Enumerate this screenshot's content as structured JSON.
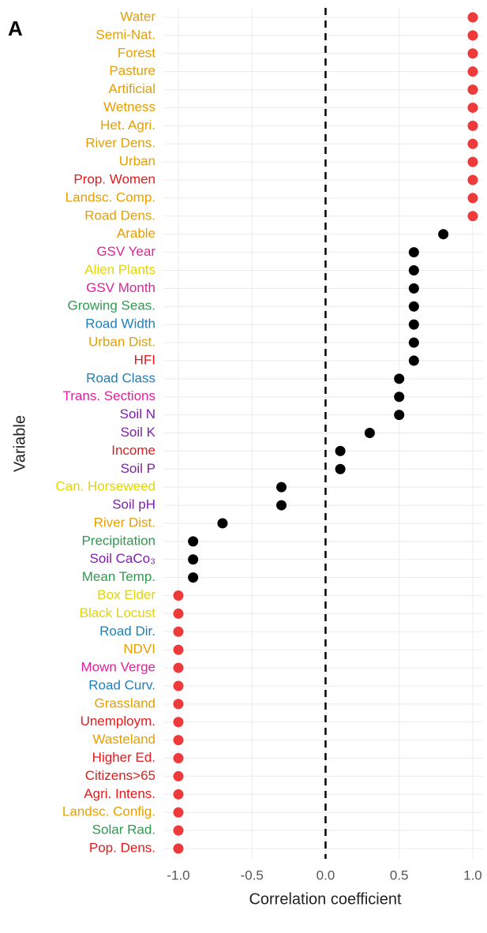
{
  "chart_data": {
    "type": "dot",
    "panel_label": "A",
    "xlabel": "Correlation coefficient",
    "ylabel": "Variable",
    "categories": [
      "Water",
      "Semi-Nat.",
      "Forest",
      "Pasture",
      "Artificial",
      "Wetness",
      "Het. Agri.",
      "River Dens.",
      "Urban",
      "Prop. Women",
      "Landsc. Comp.",
      "Road Dens.",
      "Arable",
      "GSV Year",
      "Alien Plants",
      "GSV Month",
      "Growing Seas.",
      "Road Width",
      "Urban Dist.",
      "HFI",
      "Road Class",
      "Trans. Sections",
      "Soil N",
      "Soil K",
      "Income",
      "Soil P",
      "Can. Horseweed",
      "Soil pH",
      "River Dist.",
      "Precipitation",
      "Soil CaCo₃",
      "Mean Temp.",
      "Box Elder",
      "Black Locust",
      "Road Dir.",
      "NDVI",
      "Mown Verge",
      "Road Curv.",
      "Grassland",
      "Unemploym.",
      "Wasteland",
      "Higher Ed.",
      "Citizens>65",
      "Agri. Intens.",
      "Landsc. Config.",
      "Solar Rad.",
      "Pop. Dens."
    ],
    "values": [
      1,
      1,
      1,
      1,
      1,
      1,
      1,
      1,
      1,
      1,
      1,
      1,
      0.8,
      0.6,
      0.6,
      0.6,
      0.6,
      0.6,
      0.6,
      0.6,
      0.5,
      0.5,
      0.5,
      0.3,
      0.1,
      0.1,
      -0.3,
      -0.3,
      -0.7,
      -0.9,
      -0.9,
      -0.9,
      -1,
      -1,
      -1,
      -1,
      -1,
      -1,
      -1,
      -1,
      -1,
      -1,
      -1,
      -1,
      -1,
      -1,
      -1
    ],
    "point_colors": [
      "#ee3a3a",
      "#ee3a3a",
      "#ee3a3a",
      "#ee3a3a",
      "#ee3a3a",
      "#ee3a3a",
      "#ee3a3a",
      "#ee3a3a",
      "#ee3a3a",
      "#ee3a3a",
      "#ee3a3a",
      "#ee3a3a",
      "#000000",
      "#000000",
      "#000000",
      "#000000",
      "#000000",
      "#000000",
      "#000000",
      "#000000",
      "#000000",
      "#000000",
      "#000000",
      "#000000",
      "#000000",
      "#000000",
      "#000000",
      "#000000",
      "#000000",
      "#000000",
      "#000000",
      "#000000",
      "#ee3a3a",
      "#ee3a3a",
      "#ee3a3a",
      "#ee3a3a",
      "#ee3a3a",
      "#ee3a3a",
      "#ee3a3a",
      "#ee3a3a",
      "#ee3a3a",
      "#ee3a3a",
      "#ee3a3a",
      "#ee3a3a",
      "#ee3a3a",
      "#ee3a3a",
      "#ee3a3a"
    ],
    "label_colors": [
      "#e69f00",
      "#e69f00",
      "#e69f00",
      "#e69f00",
      "#e69f00",
      "#e69f00",
      "#e69f00",
      "#e69f00",
      "#e69f00",
      "#e41a1c",
      "#e69f00",
      "#e69f00",
      "#e69f00",
      "#e0219b",
      "#e3d600",
      "#e0219b",
      "#2e9a4f",
      "#1f7fb8",
      "#e69f00",
      "#e41a1c",
      "#1f7fb8",
      "#e0219b",
      "#7e1fa8",
      "#7e1fa8",
      "#e41a1c",
      "#7e1fa8",
      "#e3d600",
      "#7e1fa8",
      "#e69f00",
      "#2e9a4f",
      "#7e1fa8",
      "#2e9a4f",
      "#e3d600",
      "#e3d600",
      "#1f7fb8",
      "#e69f00",
      "#e0219b",
      "#1f7fb8",
      "#e69f00",
      "#e41a1c",
      "#e69f00",
      "#e41a1c",
      "#e41a1c",
      "#e41a1c",
      "#e69f00",
      "#2e9a4f",
      "#e41a1c"
    ],
    "xlim": [
      -1.1,
      1.07
    ],
    "xticks": [
      {
        "value": -1,
        "label": "-1.0"
      },
      -0.5,
      {
        "value": 0,
        "label": "0.0"
      },
      0.5,
      {
        "value": 1,
        "label": "1.0"
      }
    ],
    "reference_line": 0,
    "grid": true
  }
}
